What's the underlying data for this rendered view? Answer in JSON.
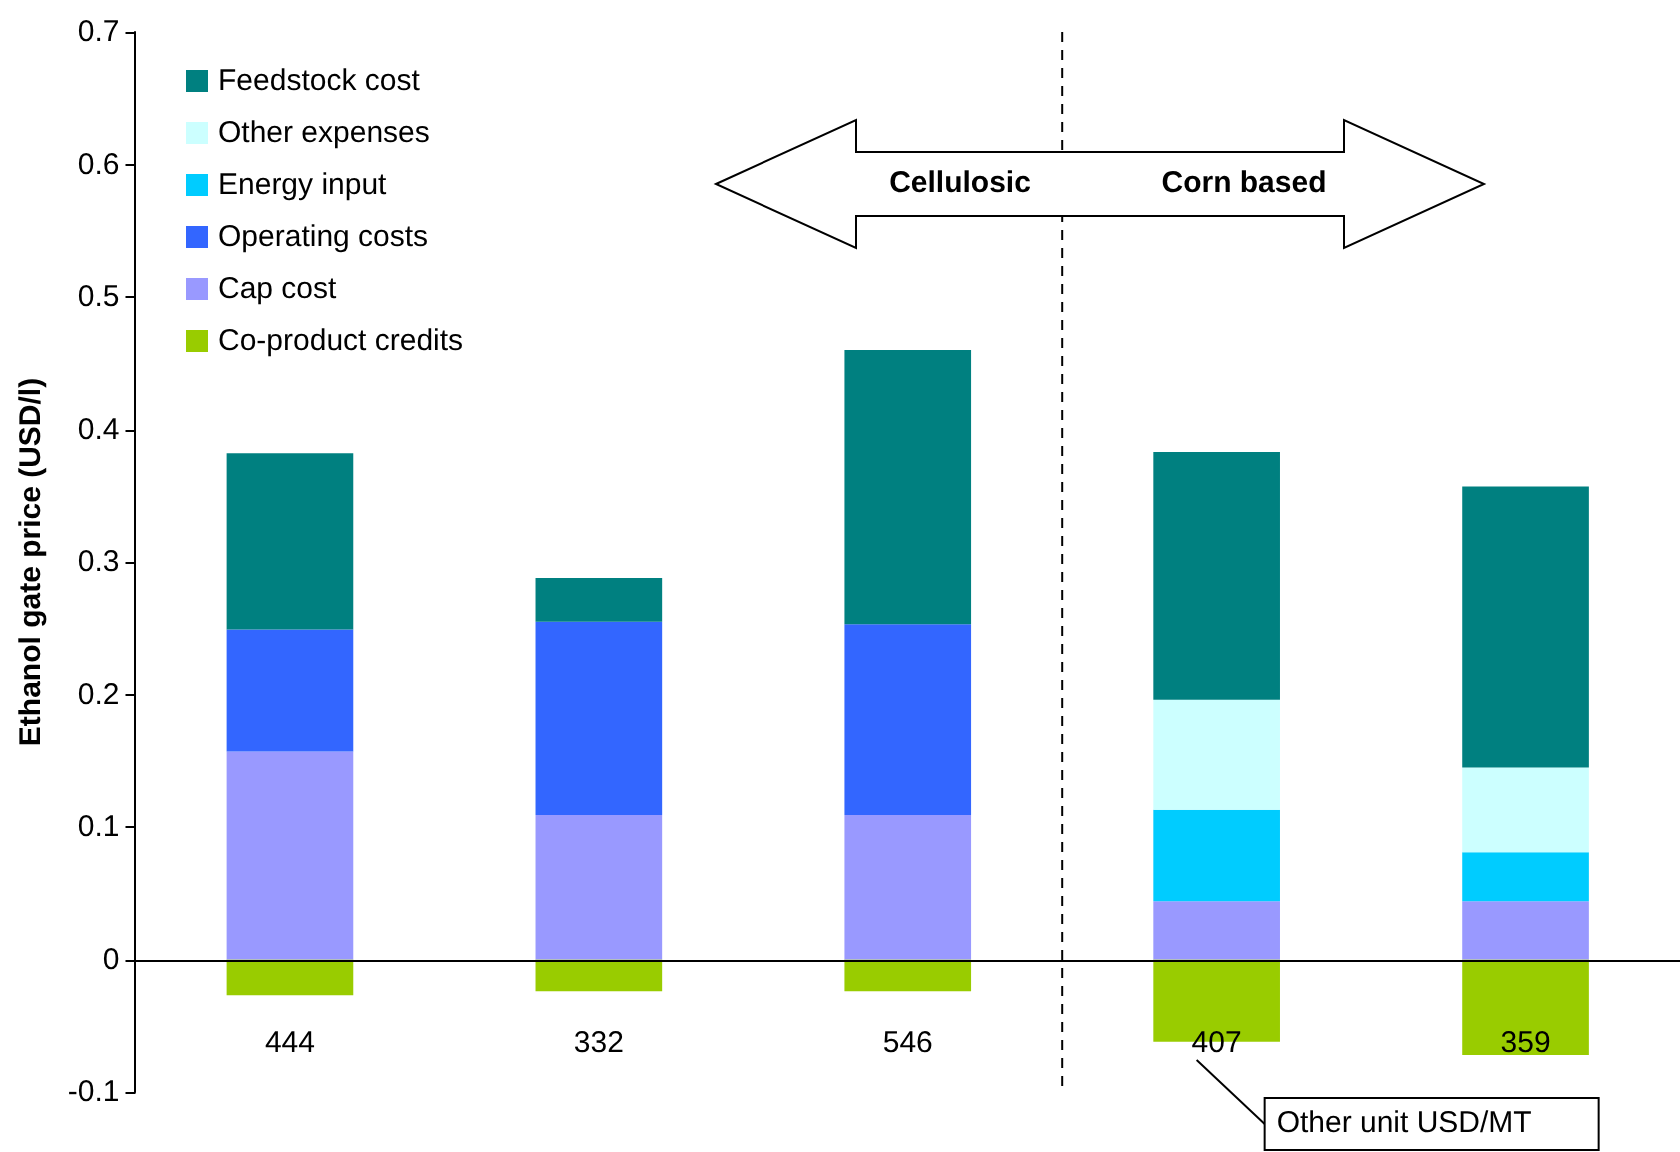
{
  "chart_data": {
    "type": "bar",
    "stacked": true,
    "ylabel": "Ethanol gate price (USD/l)",
    "categories": [
      "444",
      "332",
      "546",
      "407",
      "359"
    ],
    "series": [
      {
        "name": "Co-product credits",
        "color": "#99cc00",
        "values": [
          -0.027,
          -0.024,
          -0.024,
          -0.062,
          -0.072
        ]
      },
      {
        "name": "Cap cost",
        "color": "#9999ff",
        "values": [
          0.157,
          0.109,
          0.109,
          0.044,
          0.044
        ]
      },
      {
        "name": "Operating costs",
        "color": "#3366ff",
        "values": [
          0.092,
          0.146,
          0.144,
          null,
          null
        ]
      },
      {
        "name": "Energy input",
        "color": "#00ccff",
        "values": [
          null,
          null,
          null,
          0.069,
          0.037
        ]
      },
      {
        "name": "Other expenses",
        "color": "#ccffff",
        "values": [
          null,
          null,
          null,
          0.083,
          0.064
        ]
      },
      {
        "name": "Feedstock cost",
        "color": "#008080",
        "values": [
          0.133,
          0.033,
          0.207,
          0.187,
          0.212
        ]
      }
    ],
    "ylim": [
      -0.1,
      0.7
    ],
    "yticks": [
      -0.1,
      0,
      0.1,
      0.2,
      0.3,
      0.4,
      0.5,
      0.6,
      0.7
    ],
    "grid": false,
    "legend": "top left",
    "annotations": [
      "Cellulosic",
      "Corn based",
      "Other unit USD/MT"
    ]
  }
}
